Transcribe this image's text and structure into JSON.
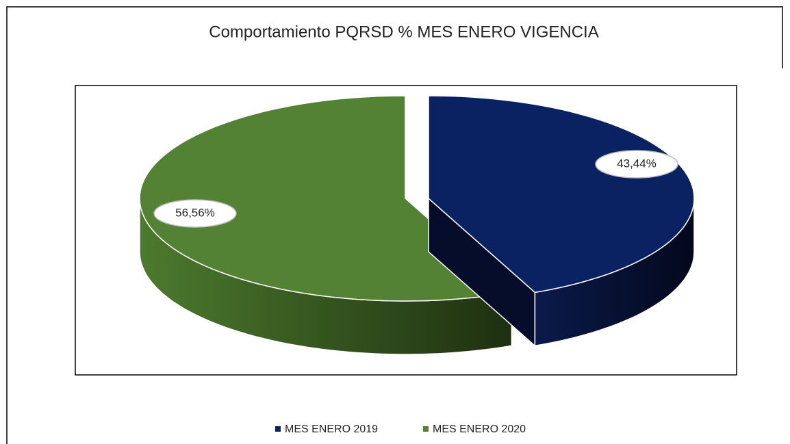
{
  "chart_data": {
    "type": "pie",
    "title": "Comportamiento PQRSD % MES ENERO VIGENCIA",
    "categories": [
      "MES ENERO 2019",
      "MES ENERO 2020"
    ],
    "values": [
      43.44,
      56.56
    ],
    "value_labels": [
      "43,44%",
      "56,56%"
    ],
    "colors": [
      "#0b2262",
      "#548235"
    ],
    "legend": "bottom"
  }
}
